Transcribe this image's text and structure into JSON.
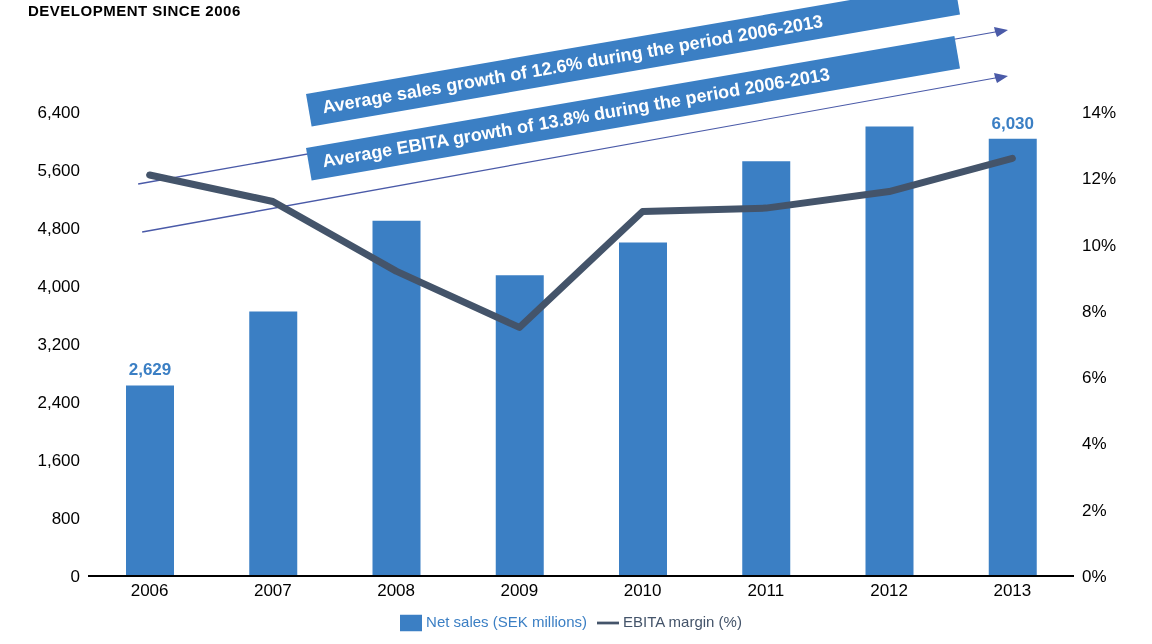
{
  "chart_data": {
    "type": "bar",
    "title": "DEVELOPMENT SINCE 2006",
    "categories": [
      "2006",
      "2007",
      "2008",
      "2009",
      "2010",
      "2011",
      "2012",
      "2013"
    ],
    "series": [
      {
        "name": "Net sales (SEK millions)",
        "color": "#3b7fc4",
        "values": [
          2629,
          3650,
          4900,
          4150,
          4600,
          5720,
          6200,
          6030
        ],
        "value_labels": [
          "2,629",
          null,
          null,
          null,
          null,
          null,
          null,
          "6,030"
        ]
      },
      {
        "name": "EBITA margin (%)",
        "type": "line",
        "axis": "y2",
        "color": "#44546a",
        "values": [
          12.1,
          11.3,
          9.2,
          7.5,
          11.0,
          11.1,
          11.6,
          12.6
        ]
      }
    ],
    "ylim": [
      0,
      6400
    ],
    "yticks": [
      0,
      800,
      {
        "value": 1600,
        "label": "1,600"
      },
      {
        "value": 2400,
        "label": "2,400"
      },
      {
        "value": 3200,
        "label": "3,200"
      },
      {
        "value": 4000,
        "label": "4,000"
      },
      {
        "value": 4800,
        "label": "4,800"
      },
      {
        "value": 5600,
        "label": "5,600"
      },
      {
        "value": 6400,
        "label": "6,400"
      }
    ],
    "y2lim": [
      0,
      14
    ],
    "y2ticks": [
      {
        "value": 0,
        "label": "0%"
      },
      {
        "value": 2,
        "label": "2%"
      },
      {
        "value": 4,
        "label": "4%"
      },
      {
        "value": 6,
        "label": "6%"
      },
      {
        "value": 8,
        "label": "8%"
      },
      {
        "value": 10,
        "label": "10%"
      },
      {
        "value": 12,
        "label": "12%"
      },
      {
        "value": 14,
        "label": "14%"
      }
    ],
    "annotations": [
      "Average sales growth of 12.6% during the period 2006-2013",
      "Average EBITA growth of 13.8% during the period 2006-2013"
    ],
    "grid": false,
    "legend": "bottom",
    "marker": "none",
    "line_style": "solid"
  }
}
